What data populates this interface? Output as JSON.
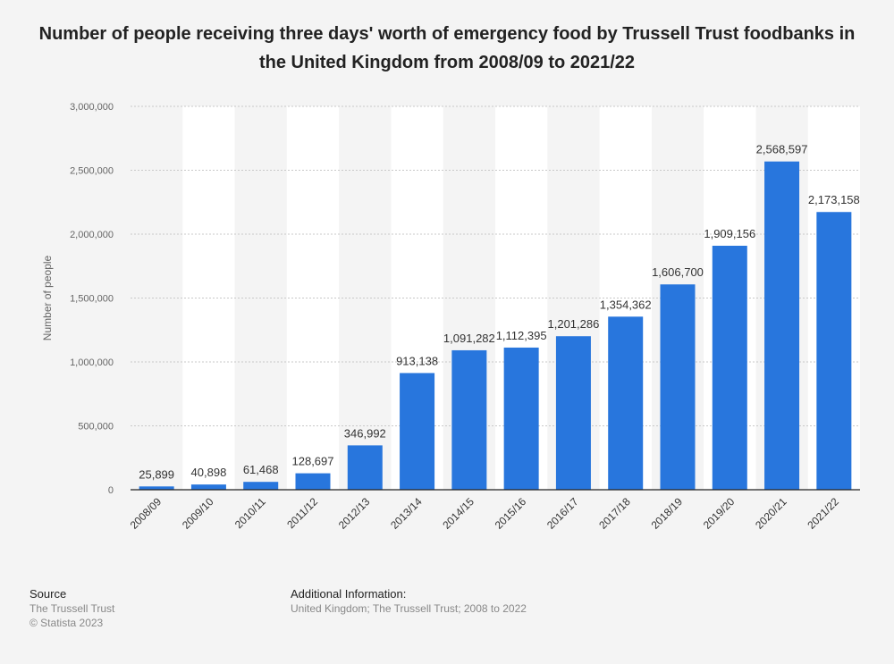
{
  "chart_data": {
    "type": "bar",
    "title": "Number of people receiving three days' worth of emergency food by Trussell Trust foodbanks in the United Kingdom from 2008/09 to 2021/22",
    "xlabel": "",
    "ylabel": "Number of people",
    "categories": [
      "2008/09",
      "2009/10",
      "2010/11",
      "2011/12",
      "2012/13",
      "2013/14",
      "2014/15",
      "2015/16",
      "2016/17",
      "2017/18",
      "2018/19",
      "2019/20",
      "2020/21",
      "2021/22"
    ],
    "values": [
      25899,
      40898,
      61468,
      128697,
      346992,
      913138,
      1091282,
      1112395,
      1201286,
      1354362,
      1606700,
      1909156,
      2568597,
      2173158
    ],
    "value_labels": [
      "25,899",
      "40,898",
      "61,468",
      "128,697",
      "346,992",
      "913,138",
      "1,091,282",
      "1,112,395",
      "1,201,286",
      "1,354,362",
      "1,606,700",
      "1,909,156",
      "2,568,597",
      "2,173,158"
    ],
    "yticks": [
      0,
      500000,
      1000000,
      1500000,
      2000000,
      2500000,
      3000000
    ],
    "ytick_labels": [
      "0",
      "500,000",
      "1,000,000",
      "1,500,000",
      "2,000,000",
      "2,500,000",
      "3,000,000"
    ],
    "ylim": [
      0,
      3000000
    ],
    "grid": true,
    "bar_color": "#2876dd"
  },
  "footer": {
    "source_heading": "Source",
    "source_lines": [
      "The Trussell Trust",
      "© Statista 2023"
    ],
    "info_heading": "Additional Information:",
    "info_text": "United Kingdom; The Trussell Trust; 2008 to 2022"
  }
}
